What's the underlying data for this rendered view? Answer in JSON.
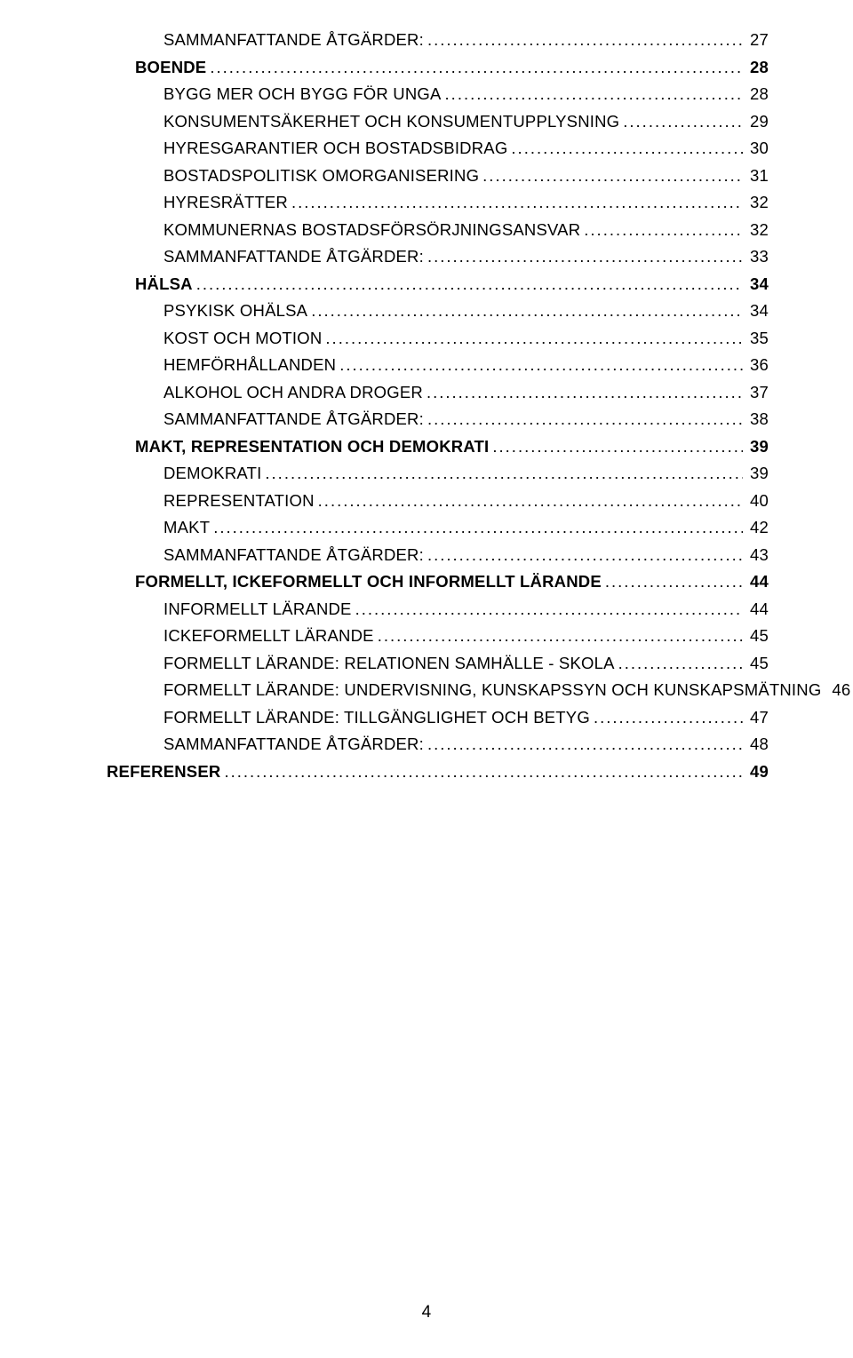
{
  "typography": {
    "font_family": "Century Gothic / Avant Garde",
    "base_fontsize_pt": 14,
    "bold_weight": 700,
    "regular_weight": 400,
    "text_color": "#000000",
    "background_color": "#ffffff",
    "leader_char": "."
  },
  "page_number": "4",
  "toc": [
    {
      "label": "SAMMANFATTANDE ÅTGÄRDER:",
      "page": "27",
      "level": 2,
      "bold": false
    },
    {
      "label": "BOENDE",
      "page": "28",
      "level": 1,
      "bold": true
    },
    {
      "label": "BYGG MER OCH BYGG FÖR UNGA",
      "page": "28",
      "level": 2,
      "bold": false
    },
    {
      "label": "KONSUMENTSÄKERHET OCH KONSUMENTUPPLYSNING",
      "page": "29",
      "level": 2,
      "bold": false
    },
    {
      "label": "HYRESGARANTIER OCH BOSTADSBIDRAG",
      "page": "30",
      "level": 2,
      "bold": false
    },
    {
      "label": "BOSTADSPOLITISK OMORGANISERING",
      "page": "31",
      "level": 2,
      "bold": false
    },
    {
      "label": "HYRESRÄTTER",
      "page": "32",
      "level": 2,
      "bold": false
    },
    {
      "label": "KOMMUNERNAS BOSTADSFÖRSÖRJNINGSANSVAR",
      "page": "32",
      "level": 2,
      "bold": false
    },
    {
      "label": "SAMMANFATTANDE ÅTGÄRDER:",
      "page": "33",
      "level": 2,
      "bold": false
    },
    {
      "label": "HÄLSA",
      "page": "34",
      "level": 1,
      "bold": true
    },
    {
      "label": "PSYKISK OHÄLSA",
      "page": "34",
      "level": 2,
      "bold": false
    },
    {
      "label": "KOST OCH MOTION",
      "page": "35",
      "level": 2,
      "bold": false
    },
    {
      "label": "HEMFÖRHÅLLANDEN",
      "page": "36",
      "level": 2,
      "bold": false
    },
    {
      "label": "ALKOHOL OCH ANDRA DROGER",
      "page": "37",
      "level": 2,
      "bold": false
    },
    {
      "label": "SAMMANFATTANDE ÅTGÄRDER:",
      "page": "38",
      "level": 2,
      "bold": false
    },
    {
      "label": "MAKT, REPRESENTATION OCH DEMOKRATI",
      "page": "39",
      "level": 1,
      "bold": true
    },
    {
      "label": "DEMOKRATI",
      "page": "39",
      "level": 2,
      "bold": false
    },
    {
      "label": "REPRESENTATION",
      "page": "40",
      "level": 2,
      "bold": false
    },
    {
      "label": "MAKT",
      "page": "42",
      "level": 2,
      "bold": false
    },
    {
      "label": "SAMMANFATTANDE ÅTGÄRDER:",
      "page": "43",
      "level": 2,
      "bold": false
    },
    {
      "label": "FORMELLT, ICKEFORMELLT OCH INFORMELLT LÄRANDE",
      "page": "44",
      "level": 1,
      "bold": true
    },
    {
      "label": "INFORMELLT LÄRANDE",
      "page": "44",
      "level": 2,
      "bold": false
    },
    {
      "label": "ICKEFORMELLT LÄRANDE",
      "page": "45",
      "level": 2,
      "bold": false
    },
    {
      "label": "FORMELLT LÄRANDE: RELATIONEN SAMHÄLLE - SKOLA",
      "page": "45",
      "level": 2,
      "bold": false
    },
    {
      "label": "FORMELLT LÄRANDE: UNDERVISNING, KUNSKAPSSYN OCH KUNSKAPSMÄTNING",
      "page": "46",
      "level": 2,
      "bold": false
    },
    {
      "label": "FORMELLT LÄRANDE: TILLGÄNGLIGHET OCH BETYG",
      "page": "47",
      "level": 2,
      "bold": false
    },
    {
      "label": "SAMMANFATTANDE ÅTGÄRDER:",
      "page": "48",
      "level": 2,
      "bold": false
    },
    {
      "label": "REFERENSER",
      "page": "49",
      "level": 0,
      "bold": true
    }
  ]
}
